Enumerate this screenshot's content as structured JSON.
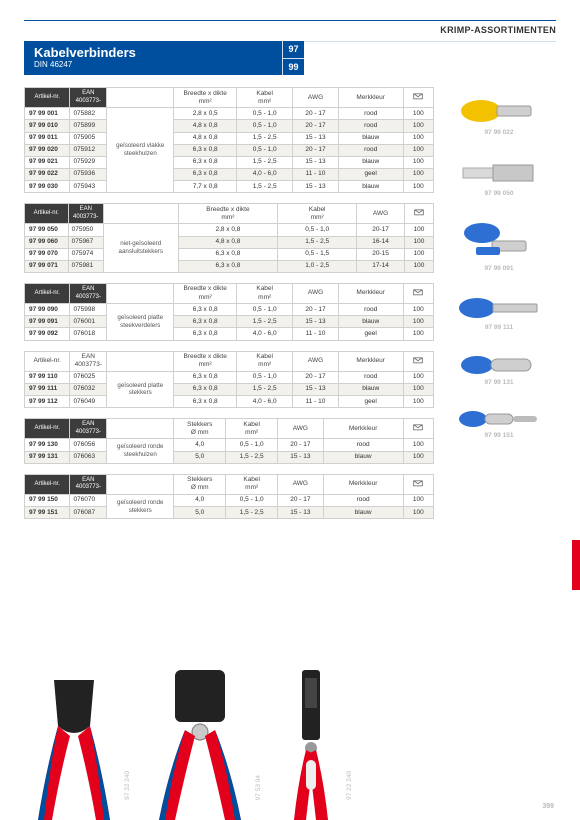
{
  "category": "KRIMP-ASSORTIMENTEN",
  "header": {
    "title": "Kabelverbinders",
    "subtitle": "DIN 46247",
    "num1": "97",
    "num2": "99"
  },
  "col": {
    "art": "Artikel-nr.",
    "ean": "EAN\n4003773-",
    "bxd": "Breedte x dikte\nmm²",
    "kabel": "Kabel\nmm²",
    "awg": "AWG",
    "kleur": "Merkkleur",
    "stek": "Stekkers\nØ mm"
  },
  "t1": {
    "desc": "geïsoleerd vlakke steekhulzen",
    "rows": [
      {
        "a": "97 99 001",
        "e": "075882",
        "b": "2,8 x 0,5",
        "k": "0,5 - 1,0",
        "w": "20 - 17",
        "m": "rood",
        "q": "100"
      },
      {
        "a": "97 99 010",
        "e": "075899",
        "b": "4,8 x 0,8",
        "k": "0,5 - 1,0",
        "w": "20 - 17",
        "m": "rood",
        "q": "100"
      },
      {
        "a": "97 99 011",
        "e": "075905",
        "b": "4,8 x 0,8",
        "k": "1,5 - 2,5",
        "w": "15 - 13",
        "m": "blauw",
        "q": "100"
      },
      {
        "a": "97 99 020",
        "e": "075912",
        "b": "6,3 x 0,8",
        "k": "0,5 - 1,0",
        "w": "20 - 17",
        "m": "rood",
        "q": "100"
      },
      {
        "a": "97 99 021",
        "e": "075929",
        "b": "6,3 x 0,8",
        "k": "1,5 - 2,5",
        "w": "15 - 13",
        "m": "blauw",
        "q": "100"
      },
      {
        "a": "97 99 022",
        "e": "075936",
        "b": "6,3 x 0,8",
        "k": "4,0 - 6,0",
        "w": "11 - 10",
        "m": "geel",
        "q": "100"
      },
      {
        "a": "97 99 030",
        "e": "075943",
        "b": "7,7 x 0,8",
        "k": "1,5 - 2,5",
        "w": "15 - 13",
        "m": "blauw",
        "q": "100"
      }
    ]
  },
  "t2": {
    "desc": "niet-geïsoleerd aansluitstekkers",
    "rows": [
      {
        "a": "97 99 050",
        "e": "075950",
        "b": "2,8 x 0,8",
        "k": "0,5 - 1,0",
        "w": "20-17",
        "q": "100"
      },
      {
        "a": "97 99 060",
        "e": "075967",
        "b": "4,8 x 0,8",
        "k": "1,5 - 2,5",
        "w": "16-14",
        "q": "100"
      },
      {
        "a": "97 99 070",
        "e": "075974",
        "b": "6,3 x 0,8",
        "k": "0,5 - 1,5",
        "w": "20-15",
        "q": "100"
      },
      {
        "a": "97 99 071",
        "e": "075981",
        "b": "6,3 x 0,8",
        "k": "1,0 - 2,5",
        "w": "17-14",
        "q": "100"
      }
    ]
  },
  "t3": {
    "desc": "geïsoleerd platte steekverdelers",
    "rows": [
      {
        "a": "97 99 090",
        "e": "075998",
        "b": "6,3 x 0,8",
        "k": "0,5 - 1,0",
        "w": "20 - 17",
        "m": "rood",
        "q": "100"
      },
      {
        "a": "97 99 091",
        "e": "076001",
        "b": "6,3 x 0,8",
        "k": "1,5 - 2,5",
        "w": "15 - 13",
        "m": "blauw",
        "q": "100"
      },
      {
        "a": "97 99 092",
        "e": "076018",
        "b": "6,3 x 0,8",
        "k": "4,0 - 6,0",
        "w": "11 - 10",
        "m": "geel",
        "q": "100"
      }
    ]
  },
  "t4": {
    "desc": "geïsoleerd platte stekkers",
    "rows": [
      {
        "a": "97 99 110",
        "e": "076025",
        "b": "6,3 x 0,8",
        "k": "0,5 - 1,0",
        "w": "20 - 17",
        "m": "rood",
        "q": "100"
      },
      {
        "a": "97 99 111",
        "e": "076032",
        "b": "6,3 x 0,8",
        "k": "1,5 - 2,5",
        "w": "15 - 13",
        "m": "blauw",
        "q": "100"
      },
      {
        "a": "97 99 112",
        "e": "076049",
        "b": "6,3 x 0,8",
        "k": "4,0 - 6,0",
        "w": "11 - 10",
        "m": "geel",
        "q": "100"
      }
    ]
  },
  "t5": {
    "desc": "geïsoleerd ronde steekhulzen",
    "rows": [
      {
        "a": "97 99 130",
        "e": "076056",
        "s": "4,0",
        "k": "0,5 - 1,0",
        "w": "20 - 17",
        "m": "rood",
        "q": "100"
      },
      {
        "a": "97 99 131",
        "e": "076063",
        "s": "5,0",
        "k": "1,5 - 2,5",
        "w": "15 - 13",
        "m": "blauw",
        "q": "100"
      }
    ]
  },
  "t6": {
    "desc": "geïsoleerd ronde stekkers",
    "rows": [
      {
        "a": "97 99 150",
        "e": "076070",
        "s": "4,0",
        "k": "0,5 - 1,0",
        "w": "20 - 17",
        "m": "rood",
        "q": "100"
      },
      {
        "a": "97 99 151",
        "e": "076087",
        "s": "5,0",
        "k": "1,5 - 2,5",
        "w": "15 - 13",
        "m": "blauw",
        "q": "100"
      }
    ]
  },
  "products": [
    {
      "label": "97 99 022",
      "color": "#f2c200",
      "type": "flat-female"
    },
    {
      "label": "97 99 050",
      "color": "#bfbfbf",
      "type": "blade"
    },
    {
      "label": "97 99 091",
      "color": "#2d6fd2",
      "type": "piggyback"
    },
    {
      "label": "97 99 111",
      "color": "#2d6fd2",
      "type": "flat-male"
    },
    {
      "label": "97 99 131",
      "color": "#2d6fd2",
      "type": "bullet-female"
    },
    {
      "label": "97 99 151",
      "color": "#2d6fd2",
      "type": "bullet-male"
    }
  ],
  "tools": [
    {
      "label": "97 32 240",
      "grip1": "#e2001a",
      "grip2": "#004f9e",
      "head": "#222"
    },
    {
      "label": "97 53 04",
      "grip1": "#e2001a",
      "grip2": "#004f9e",
      "head": "#222"
    },
    {
      "label": "97 22 240",
      "grip1": "#e2001a",
      "grip2": "#004f9e",
      "head": "#222"
    }
  ],
  "pagenum": "399",
  "colors": {
    "brand": "#004f9e",
    "accent": "#e2001a",
    "band": "#f3f1ec"
  }
}
